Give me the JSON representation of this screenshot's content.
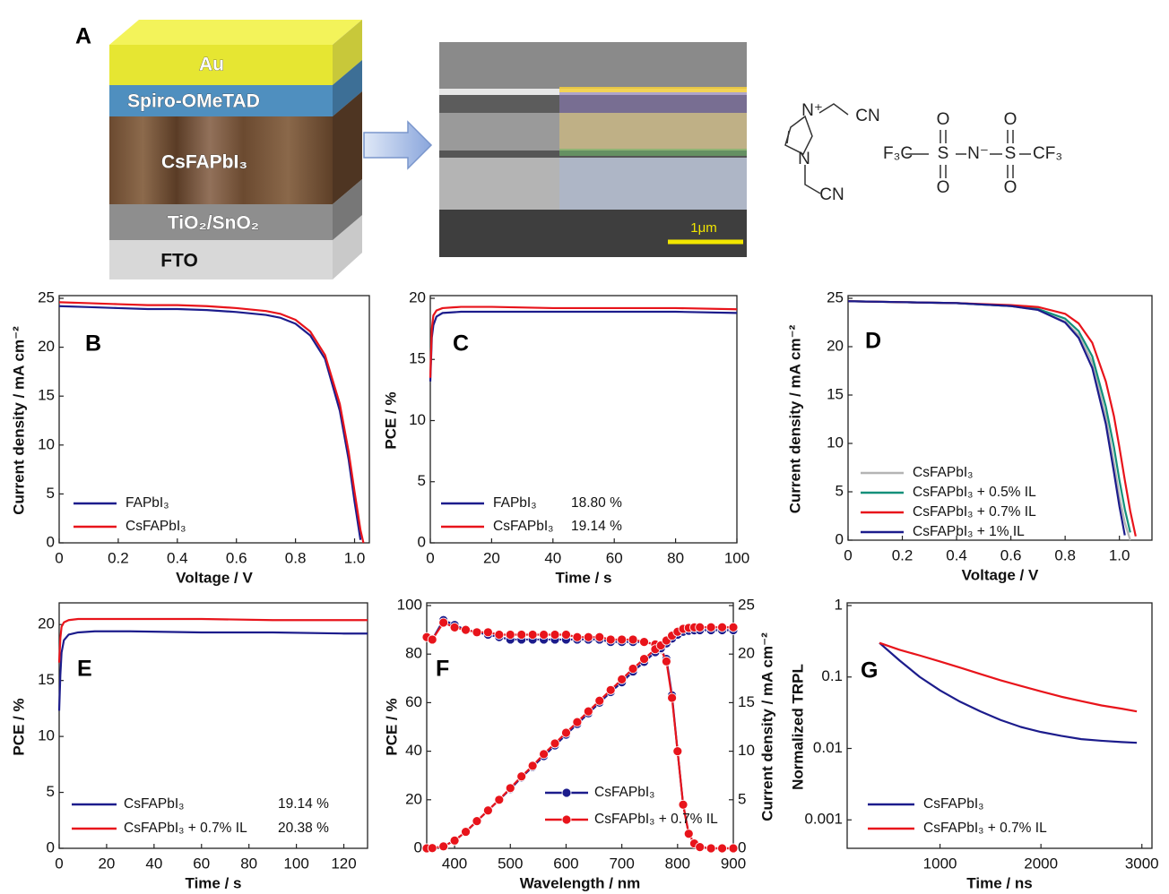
{
  "panel_a": {
    "label": "A",
    "layers": [
      "Au",
      "Spiro-OMeTAD",
      "CsFAPbI₃",
      "TiO₂/SnO₂",
      "FTO"
    ],
    "scale_bar": "1μm"
  },
  "molecule": {
    "cation": [
      "N⁺",
      "CN",
      "N",
      "CN"
    ],
    "anion": [
      "F₃C",
      "S",
      "N⁻",
      "S",
      "CF₃",
      "O",
      "O",
      "O",
      "O"
    ]
  },
  "chart_data": [
    {
      "type": "line",
      "panel": "B",
      "xlabel": "Voltage / V",
      "ylabel": "Current density / mA cm⁻²",
      "xlim": [
        0,
        1.05
      ],
      "ylim": [
        0,
        25
      ],
      "xticks": [
        0,
        0.2,
        0.4,
        0.6,
        0.8,
        {
          "value": 1,
          "label": "1.0"
        }
      ],
      "yticks": [
        0,
        5,
        10,
        15,
        20,
        25
      ],
      "legend": "lower left",
      "x": [
        0,
        0.1,
        0.2,
        0.3,
        0.4,
        0.5,
        0.6,
        0.7,
        0.75,
        0.8,
        0.85,
        0.9,
        0.95,
        0.98,
        1.0,
        1.02,
        1.03
      ],
      "series": [
        {
          "name": "FAPbI₃",
          "color": "#1c1c8c",
          "values": [
            24.2,
            24.1,
            24.0,
            23.9,
            23.9,
            23.8,
            23.6,
            23.3,
            23.0,
            22.4,
            21.2,
            18.8,
            13.5,
            8.5,
            4.2,
            0.3,
            null
          ]
        },
        {
          "name": "CsFAPbI₃",
          "color": "#e8141b",
          "values": [
            24.6,
            24.5,
            24.4,
            24.3,
            24.3,
            24.2,
            24.0,
            23.7,
            23.4,
            22.8,
            21.6,
            19.2,
            14.2,
            9.3,
            5.2,
            1.3,
            0
          ]
        }
      ]
    },
    {
      "type": "line",
      "panel": "C",
      "xlabel": "Time / s",
      "ylabel": "PCE / %",
      "xlim": [
        0,
        100
      ],
      "ylim": [
        0,
        20
      ],
      "xticks": [
        0,
        20,
        40,
        60,
        80,
        100
      ],
      "yticks": [
        0,
        5,
        10,
        15,
        20
      ],
      "legend": "lower left",
      "x": [
        0,
        0.5,
        1,
        2,
        4,
        10,
        20,
        40,
        60,
        80,
        100
      ],
      "series": [
        {
          "name": "FAPbI₃",
          "annotation": "18.80 %",
          "color": "#1c1c8c",
          "values": [
            13.2,
            16.8,
            17.8,
            18.5,
            18.8,
            18.9,
            18.9,
            18.9,
            18.9,
            18.9,
            18.8
          ]
        },
        {
          "name": "CsFAPbI₃",
          "annotation": "19.14 %",
          "color": "#e8141b",
          "values": [
            13.5,
            17.5,
            18.6,
            19.0,
            19.2,
            19.3,
            19.3,
            19.2,
            19.2,
            19.2,
            19.1
          ]
        }
      ]
    },
    {
      "type": "line",
      "panel": "D",
      "xlabel": "Voltage / V",
      "ylabel": "Current density / mA cm⁻²",
      "xlim": [
        0,
        1.12
      ],
      "ylim": [
        0,
        25
      ],
      "xticks": [
        0,
        0.2,
        0.4,
        0.6,
        0.8,
        {
          "value": 1,
          "label": "1.0"
        }
      ],
      "yticks": [
        0,
        5,
        10,
        15,
        20,
        25
      ],
      "legend": "lower left",
      "x": [
        0,
        0.2,
        0.4,
        0.6,
        0.7,
        0.8,
        0.85,
        0.9,
        0.95,
        0.98,
        1.0,
        1.02,
        1.04,
        1.06,
        1.07
      ],
      "series": [
        {
          "name": "CsFAPbI₃",
          "color": "#b4b4b4",
          "values": [
            24.7,
            24.6,
            24.5,
            24.2,
            23.8,
            22.6,
            21.2,
            18.4,
            12.8,
            8.0,
            4.5,
            1.8,
            0,
            null,
            null
          ]
        },
        {
          "name": "CsFAPbI₃ + 0.5% IL",
          "color": "#14907a",
          "values": [
            24.7,
            24.6,
            24.5,
            24.2,
            23.9,
            22.9,
            21.6,
            19.0,
            13.8,
            9.6,
            6.2,
            3.2,
            0.8,
            null,
            null
          ]
        },
        {
          "name": "CsFAPbI₃ + 0.7% IL",
          "color": "#e8141b",
          "values": [
            24.7,
            24.6,
            24.5,
            24.3,
            24.1,
            23.4,
            22.4,
            20.4,
            16.4,
            12.8,
            9.6,
            6.2,
            3.0,
            0.4,
            null
          ]
        },
        {
          "name": "CsFAPbI₃ + 1% IL",
          "color": "#1c1c8c",
          "values": [
            24.7,
            24.6,
            24.5,
            24.2,
            23.8,
            22.5,
            20.9,
            17.8,
            12.0,
            7.0,
            3.5,
            0.5,
            null,
            null,
            null
          ]
        }
      ]
    },
    {
      "type": "line",
      "panel": "E",
      "xlabel": "Time / s",
      "ylabel": "PCE / %",
      "xlim": [
        0,
        130
      ],
      "ylim": [
        0,
        21.7
      ],
      "xticks": [
        0,
        20,
        40,
        60,
        80,
        100,
        120
      ],
      "yticks": [
        0,
        5,
        10,
        15,
        20
      ],
      "legend": "lower left",
      "x": [
        0,
        0.5,
        1,
        2,
        4,
        8,
        15,
        30,
        60,
        90,
        120,
        130
      ],
      "series": [
        {
          "name": "CsFAPbI₃",
          "annotation": "19.14 %",
          "color": "#1c1c8c",
          "values": [
            12.3,
            15.5,
            17.5,
            18.6,
            19.1,
            19.3,
            19.4,
            19.4,
            19.3,
            19.3,
            19.2,
            19.2
          ]
        },
        {
          "name": "CsFAPbI₃ + 0.7% IL",
          "annotation": "20.38 %",
          "color": "#e8141b",
          "values": [
            16.6,
            18.8,
            19.8,
            20.2,
            20.4,
            20.5,
            20.5,
            20.5,
            20.5,
            20.4,
            20.4,
            20.4
          ]
        }
      ]
    },
    {
      "type": "line",
      "panel": "F",
      "xlabel": "Wavelength / nm",
      "ylabel": "PCE / %",
      "y2label": "Current density / mA cm⁻²",
      "xlim": [
        350,
        900
      ],
      "ylim": [
        0,
        100
      ],
      "y2lim": [
        0,
        25
      ],
      "xticks": [
        400,
        500,
        600,
        700,
        800,
        900
      ],
      "yticks": [
        0,
        20,
        40,
        60,
        80,
        100
      ],
      "y2ticks": [
        0,
        5,
        10,
        15,
        20,
        25
      ],
      "legend": "lower center",
      "marker": "circle",
      "x": [
        350,
        360,
        380,
        400,
        420,
        440,
        460,
        480,
        500,
        520,
        540,
        560,
        580,
        600,
        620,
        640,
        660,
        680,
        700,
        720,
        740,
        760,
        770,
        780,
        790,
        800,
        810,
        820,
        830,
        840,
        860,
        880,
        900
      ],
      "series": [
        {
          "name": "CsFAPbI₃",
          "color": "#1c1c8c",
          "values": [
            87,
            86,
            94,
            92,
            90,
            89,
            88,
            87,
            86,
            86,
            86,
            86,
            86,
            86,
            86,
            86,
            86,
            85,
            85,
            85,
            85,
            84,
            82,
            78,
            63,
            40,
            18,
            6,
            2,
            0.5,
            0,
            0,
            0
          ]
        },
        {
          "name": "CsFAPbI₃ + 0.7% IL",
          "color": "#e8141b",
          "values": [
            87,
            86,
            93,
            91,
            90,
            89,
            89,
            88,
            88,
            88,
            88,
            88,
            88,
            88,
            87,
            87,
            87,
            86,
            86,
            86,
            85,
            84,
            82,
            77,
            62,
            40,
            18,
            6,
            2,
            0.5,
            0,
            0,
            0
          ]
        },
        {
          "axis": "y2",
          "color": "#1c1c8c",
          "values": [
            0,
            0.02,
            0.2,
            0.8,
            1.7,
            2.8,
            3.9,
            5.0,
            6.1,
            7.3,
            8.4,
            9.5,
            10.6,
            11.7,
            12.8,
            13.9,
            15.0,
            16.1,
            17.1,
            18.2,
            19.2,
            20.2,
            20.6,
            21.1,
            21.6,
            22.0,
            22.3,
            22.4,
            22.45,
            22.46,
            22.46,
            22.46,
            22.46
          ]
        },
        {
          "axis": "y2",
          "color": "#e8141b",
          "values": [
            0,
            0.02,
            0.2,
            0.8,
            1.7,
            2.8,
            3.9,
            5.0,
            6.2,
            7.4,
            8.5,
            9.7,
            10.8,
            11.9,
            13.0,
            14.1,
            15.2,
            16.3,
            17.4,
            18.5,
            19.5,
            20.5,
            20.9,
            21.4,
            21.9,
            22.3,
            22.6,
            22.7,
            22.75,
            22.76,
            22.76,
            22.76,
            22.76
          ]
        }
      ]
    },
    {
      "type": "line",
      "panel": "G",
      "xlabel": "Time / ns",
      "ylabel": "Normalized TRPL",
      "xlim": [
        80,
        3100
      ],
      "ylim": [
        0.0004,
        1
      ],
      "ylog": true,
      "xticks": [
        1000,
        2000,
        3000
      ],
      "yticks": [
        0.001,
        0.01,
        0.1,
        1
      ],
      "legend": "lower left",
      "x": [
        400,
        600,
        800,
        1000,
        1200,
        1400,
        1600,
        1800,
        2000,
        2200,
        2400,
        2600,
        2800,
        2950
      ],
      "series": [
        {
          "name": "CsFAPbI₃",
          "color": "#1c1c8c",
          "values": [
            0.3,
            0.17,
            0.1,
            0.065,
            0.045,
            0.033,
            0.025,
            0.02,
            0.017,
            0.015,
            0.0135,
            0.0128,
            0.0123,
            0.012
          ]
        },
        {
          "name": "CsFAPbI₃ + 0.7% IL",
          "color": "#e8141b",
          "values": [
            0.3,
            0.24,
            0.2,
            0.165,
            0.135,
            0.11,
            0.09,
            0.075,
            0.063,
            0.053,
            0.046,
            0.04,
            0.036,
            0.033
          ]
        }
      ]
    }
  ]
}
